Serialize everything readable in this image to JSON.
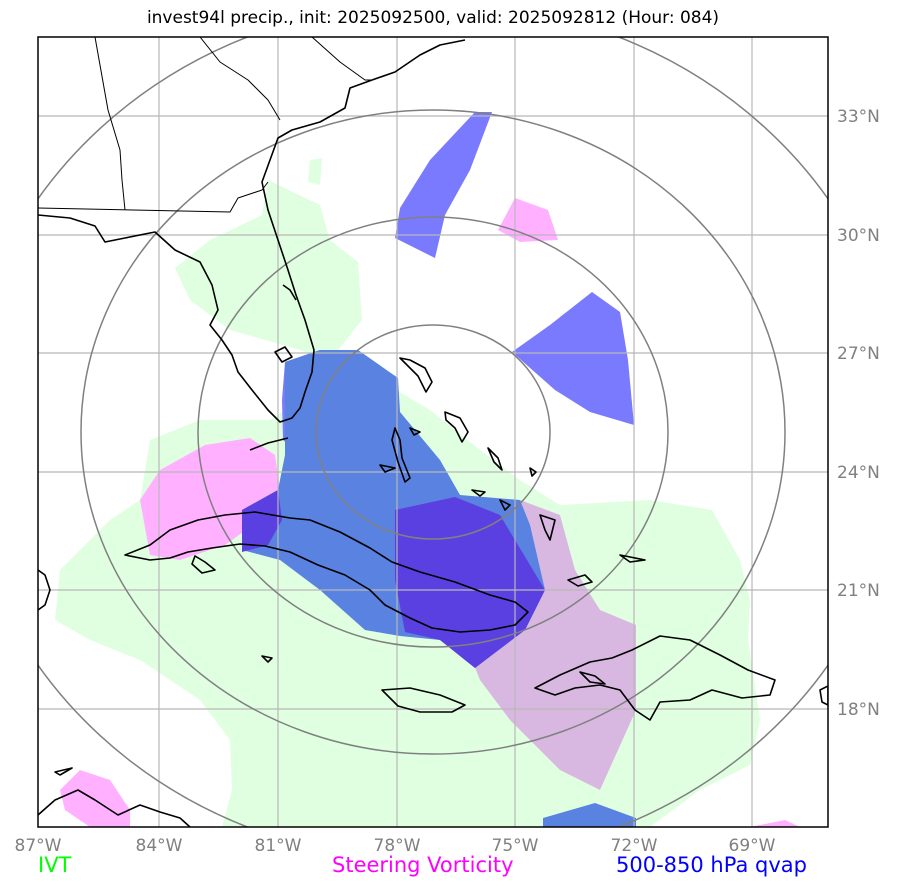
{
  "title": "invest94l precip., init: 2025092500, valid: 2025092812 (Hour: 084)",
  "lon_ticks": [
    "87°W",
    "84°W",
    "81°W",
    "78°W",
    "75°W",
    "72°W",
    "69°W"
  ],
  "lat_ticks": [
    "33°N",
    "30°N",
    "27°N",
    "24°N",
    "21°N",
    "18°N"
  ],
  "legend": [
    {
      "label": "IVT",
      "color": "#00ff00"
    },
    {
      "label": "Steering Vorticity",
      "color": "#ff00ff"
    },
    {
      "label": "500-850 hPa qvap",
      "color": "#0000ff"
    }
  ],
  "colors": {
    "ivt_fill": "#e0ffe0",
    "vorticity_fill": "#ffb0ff",
    "qvap_fill": "#7a7aff",
    "range_rings": "#808080",
    "gridlines": "#b0b0b0",
    "coastlines": "#000000"
  }
}
